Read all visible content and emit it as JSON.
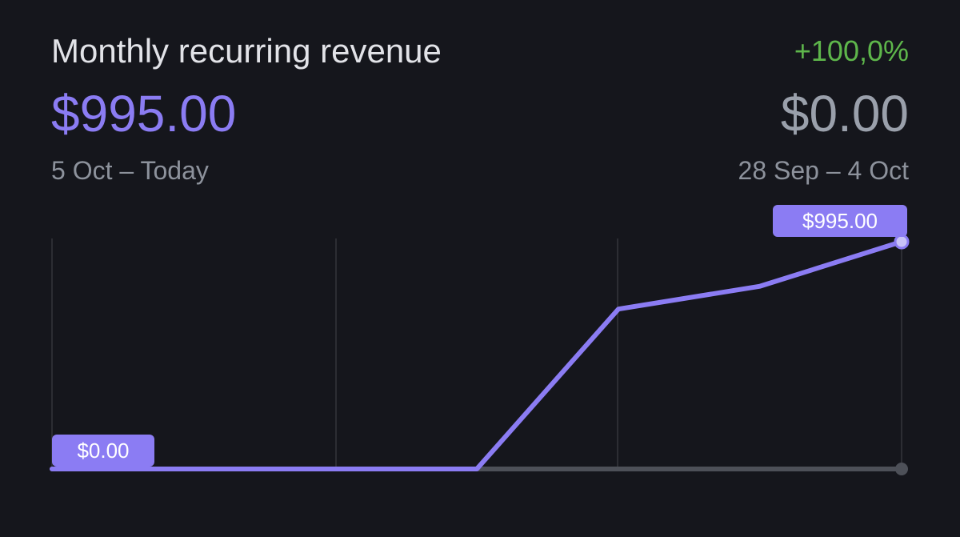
{
  "card": {
    "title": "Monthly recurring revenue",
    "change": "+100,0%",
    "current_value": "$995.00",
    "previous_value": "$0.00",
    "current_range": "5 Oct – Today",
    "previous_range": "28 Sep – 4 Oct"
  },
  "colors": {
    "background": "#15161c",
    "accent": "#8b7cf3",
    "positive": "#5eb64b",
    "muted_text": "#8d929c",
    "previous_line": "#4d5058",
    "gridline": "#2c2d33"
  },
  "chart_data": {
    "type": "line",
    "x": [
      0,
      1,
      2,
      3,
      4,
      5,
      6
    ],
    "series": [
      {
        "values": [
          0,
          0,
          0,
          0,
          700,
          800,
          995
        ],
        "color": "#8b7cf3"
      },
      {
        "values": [
          0,
          0,
          0,
          0,
          0,
          0,
          0
        ],
        "color": "#4d5058"
      }
    ],
    "ylim": [
      0,
      995
    ],
    "grid": true,
    "labels": {
      "start": "$0.00",
      "end": "$995.00"
    }
  }
}
